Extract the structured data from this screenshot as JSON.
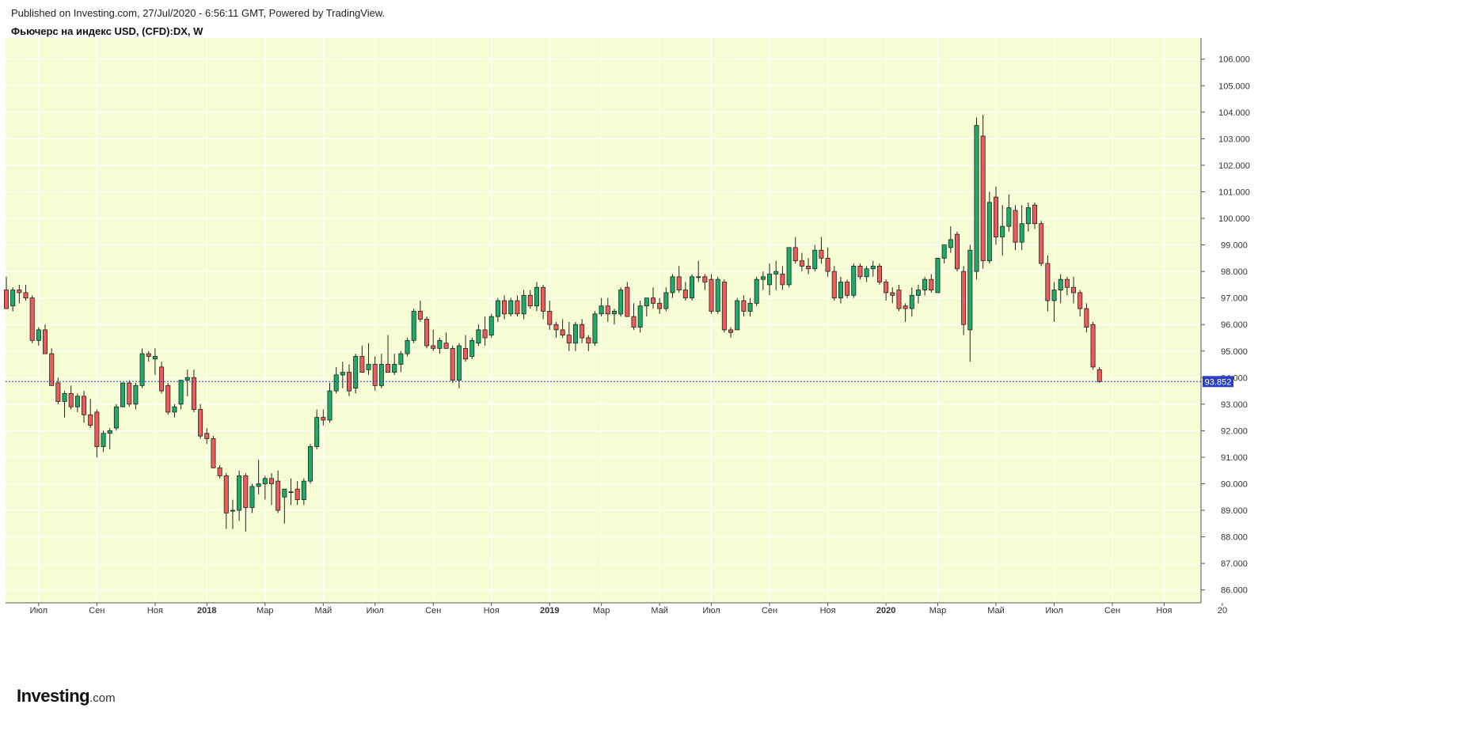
{
  "header": {
    "published": "Published on Investing.com, 27/Jul/2020 - 6:56:11 GMT, Powered by TradingView.",
    "title": "Фьючерс на индекс USD, (CFD):DX, W"
  },
  "logo": {
    "main": "Investing",
    "suffix": ".com"
  },
  "colors": {
    "plot_bg": "#f6fdd4",
    "grid": "#ffffff",
    "up": "#1dab6a",
    "down": "#ef5a5a",
    "wick": "#222222",
    "price_line": "#2b3fc9",
    "price_label_bg": "#2b3fc9"
  },
  "chart_data": {
    "type": "candlestick",
    "title": "Фьючерс на индекс USD, (CFD):DX, W",
    "ylim": [
      85.5,
      106.8
    ],
    "grid": true,
    "y_ticks": [
      "86.000",
      "87.000",
      "88.000",
      "89.000",
      "90.000",
      "91.000",
      "92.000",
      "93.000",
      "94.000",
      "95.000",
      "96.000",
      "97.000",
      "98.000",
      "99.000",
      "100.000",
      "101.000",
      "102.000",
      "103.000",
      "104.000",
      "105.000",
      "106.000"
    ],
    "x_ticks": [
      {
        "label": "Июл",
        "week": 5,
        "year": false
      },
      {
        "label": "Сен",
        "week": 14,
        "year": false
      },
      {
        "label": "Ноя",
        "week": 23,
        "year": false
      },
      {
        "label": "2018",
        "week": 31,
        "year": true
      },
      {
        "label": "Мар",
        "week": 40,
        "year": false
      },
      {
        "label": "Май",
        "week": 49,
        "year": false
      },
      {
        "label": "Июл",
        "week": 57,
        "year": false
      },
      {
        "label": "Сен",
        "week": 66,
        "year": false
      },
      {
        "label": "Ноя",
        "week": 75,
        "year": false
      },
      {
        "label": "2019",
        "week": 84,
        "year": true
      },
      {
        "label": "Мар",
        "week": 92,
        "year": false
      },
      {
        "label": "Май",
        "week": 101,
        "year": false
      },
      {
        "label": "Июл",
        "week": 109,
        "year": false
      },
      {
        "label": "Сен",
        "week": 118,
        "year": false
      },
      {
        "label": "Ноя",
        "week": 127,
        "year": false
      },
      {
        "label": "2020",
        "week": 136,
        "year": true
      },
      {
        "label": "Мар",
        "week": 144,
        "year": false
      },
      {
        "label": "Май",
        "week": 153,
        "year": false
      },
      {
        "label": "Июл",
        "week": 162,
        "year": false
      },
      {
        "label": "Сен",
        "week": 171,
        "year": false
      },
      {
        "label": "Ноя",
        "week": 179,
        "year": false
      },
      {
        "label": "20",
        "week": 188,
        "year": false
      }
    ],
    "last_price": 93.852,
    "last_price_label": "93.852",
    "candles": [
      [
        97.3,
        97.8,
        96.6,
        96.6
      ],
      [
        96.7,
        97.4,
        96.5,
        97.3
      ],
      [
        97.3,
        97.5,
        96.8,
        97.2
      ],
      [
        97.2,
        97.5,
        96.9,
        97.0
      ],
      [
        97.0,
        97.1,
        95.3,
        95.4
      ],
      [
        95.4,
        95.9,
        95.2,
        95.8
      ],
      [
        95.8,
        96.0,
        94.9,
        94.9
      ],
      [
        94.9,
        95.1,
        93.8,
        93.7
      ],
      [
        93.8,
        94.0,
        93.0,
        93.1
      ],
      [
        93.1,
        93.5,
        92.5,
        93.4
      ],
      [
        93.4,
        93.7,
        92.8,
        92.9
      ],
      [
        92.9,
        93.4,
        92.7,
        93.3
      ],
      [
        93.3,
        93.5,
        92.3,
        92.6
      ],
      [
        92.6,
        93.2,
        92.1,
        92.2
      ],
      [
        92.7,
        92.8,
        91.0,
        91.4
      ],
      [
        91.4,
        92.0,
        91.2,
        91.9
      ],
      [
        91.9,
        92.1,
        91.3,
        92.0
      ],
      [
        92.1,
        93.0,
        92.0,
        92.9
      ],
      [
        92.9,
        93.8,
        92.9,
        93.8
      ],
      [
        93.8,
        93.9,
        92.9,
        93.0
      ],
      [
        93.0,
        93.8,
        92.8,
        93.7
      ],
      [
        93.7,
        95.1,
        93.6,
        94.9
      ],
      [
        94.9,
        95.0,
        94.6,
        94.8
      ],
      [
        94.7,
        95.1,
        94.1,
        94.8
      ],
      [
        94.4,
        94.6,
        93.4,
        93.5
      ],
      [
        93.7,
        93.8,
        92.6,
        92.7
      ],
      [
        92.7,
        93.0,
        92.5,
        92.9
      ],
      [
        93.0,
        93.9,
        92.8,
        93.9
      ],
      [
        93.9,
        94.3,
        93.3,
        94.0
      ],
      [
        94.0,
        94.3,
        92.7,
        92.8
      ],
      [
        92.8,
        93.0,
        91.7,
        91.8
      ],
      [
        91.9,
        92.1,
        91.5,
        91.7
      ],
      [
        91.7,
        91.8,
        90.6,
        90.6
      ],
      [
        90.6,
        90.7,
        90.2,
        90.3
      ],
      [
        90.3,
        90.4,
        88.3,
        88.9
      ],
      [
        89.0,
        89.4,
        88.3,
        89.0
      ],
      [
        89.0,
        90.5,
        88.6,
        90.3
      ],
      [
        90.3,
        90.4,
        88.2,
        89.1
      ],
      [
        89.1,
        90.0,
        88.9,
        89.9
      ],
      [
        89.9,
        90.9,
        89.6,
        90.0
      ],
      [
        90.0,
        90.3,
        89.4,
        90.2
      ],
      [
        90.2,
        90.4,
        89.2,
        90.0
      ],
      [
        90.1,
        90.5,
        88.9,
        89.0
      ],
      [
        89.5,
        89.8,
        88.5,
        89.8
      ],
      [
        89.7,
        90.2,
        89.2,
        89.7
      ],
      [
        89.8,
        90.1,
        89.2,
        89.4
      ],
      [
        89.4,
        90.2,
        89.2,
        90.1
      ],
      [
        90.1,
        91.5,
        90.0,
        91.4
      ],
      [
        91.4,
        92.8,
        91.3,
        92.5
      ],
      [
        92.5,
        92.8,
        92.2,
        92.4
      ],
      [
        92.4,
        93.8,
        92.3,
        93.5
      ],
      [
        93.5,
        94.4,
        93.4,
        94.1
      ],
      [
        94.1,
        94.6,
        93.6,
        94.2
      ],
      [
        94.2,
        94.5,
        93.3,
        93.5
      ],
      [
        93.6,
        94.9,
        93.4,
        94.8
      ],
      [
        94.8,
        95.2,
        94.2,
        94.2
      ],
      [
        94.3,
        95.3,
        94.1,
        94.5
      ],
      [
        94.5,
        94.8,
        93.5,
        93.7
      ],
      [
        93.7,
        94.9,
        93.6,
        94.5
      ],
      [
        94.5,
        95.6,
        94.3,
        94.2
      ],
      [
        94.2,
        94.9,
        94.1,
        94.5
      ],
      [
        94.5,
        95.0,
        94.2,
        94.9
      ],
      [
        94.9,
        95.5,
        94.8,
        95.4
      ],
      [
        95.4,
        96.6,
        95.3,
        96.5
      ],
      [
        96.5,
        96.9,
        96.1,
        96.2
      ],
      [
        96.2,
        96.3,
        95.1,
        95.2
      ],
      [
        95.2,
        95.8,
        95.0,
        95.1
      ],
      [
        95.1,
        95.5,
        94.9,
        95.4
      ],
      [
        95.3,
        95.7,
        95.1,
        95.1
      ],
      [
        95.1,
        95.2,
        93.8,
        93.9
      ],
      [
        93.9,
        95.3,
        93.6,
        95.2
      ],
      [
        95.1,
        95.6,
        94.6,
        94.7
      ],
      [
        94.8,
        95.5,
        94.7,
        95.4
      ],
      [
        95.3,
        96.0,
        95.2,
        95.8
      ],
      [
        95.8,
        96.3,
        95.2,
        95.5
      ],
      [
        95.6,
        96.4,
        95.5,
        96.3
      ],
      [
        96.3,
        97.0,
        96.1,
        96.9
      ],
      [
        96.9,
        97.1,
        96.2,
        96.4
      ],
      [
        96.4,
        97.0,
        96.3,
        96.9
      ],
      [
        96.9,
        97.1,
        96.3,
        96.4
      ],
      [
        96.4,
        97.3,
        96.2,
        97.1
      ],
      [
        97.1,
        97.3,
        96.6,
        96.7
      ],
      [
        96.7,
        97.6,
        96.5,
        97.4
      ],
      [
        97.4,
        97.5,
        96.2,
        96.5
      ],
      [
        96.5,
        96.9,
        95.8,
        96.0
      ],
      [
        96.0,
        96.1,
        95.5,
        95.8
      ],
      [
        95.8,
        96.2,
        95.5,
        95.6
      ],
      [
        95.6,
        96.1,
        95.0,
        95.3
      ],
      [
        95.3,
        96.1,
        95.0,
        96.0
      ],
      [
        96.0,
        96.2,
        95.3,
        95.5
      ],
      [
        95.5,
        95.6,
        95.0,
        95.3
      ],
      [
        95.3,
        96.5,
        95.2,
        96.4
      ],
      [
        96.4,
        97.0,
        96.3,
        96.7
      ],
      [
        96.7,
        97.0,
        96.1,
        96.4
      ],
      [
        96.4,
        96.6,
        96.0,
        96.5
      ],
      [
        96.4,
        97.4,
        96.3,
        97.3
      ],
      [
        97.4,
        97.6,
        96.3,
        96.3
      ],
      [
        96.3,
        96.8,
        95.8,
        95.9
      ],
      [
        95.9,
        96.9,
        95.7,
        96.7
      ],
      [
        96.7,
        97.0,
        96.3,
        97.0
      ],
      [
        97.0,
        97.4,
        96.6,
        96.8
      ],
      [
        96.8,
        97.0,
        96.4,
        96.6
      ],
      [
        96.6,
        97.4,
        96.5,
        97.2
      ],
      [
        97.2,
        97.9,
        97.0,
        97.8
      ],
      [
        97.8,
        98.2,
        97.2,
        97.3
      ],
      [
        97.3,
        97.6,
        96.9,
        97.0
      ],
      [
        97.0,
        97.9,
        96.9,
        97.8
      ],
      [
        97.8,
        98.4,
        97.6,
        97.8
      ],
      [
        97.8,
        97.9,
        97.3,
        97.6
      ],
      [
        97.7,
        97.9,
        96.4,
        96.5
      ],
      [
        96.5,
        97.8,
        96.4,
        97.7
      ],
      [
        97.6,
        97.7,
        95.7,
        95.8
      ],
      [
        95.8,
        95.9,
        95.5,
        95.7
      ],
      [
        95.8,
        97.0,
        95.8,
        96.9
      ],
      [
        96.9,
        97.1,
        96.3,
        96.5
      ],
      [
        96.5,
        97.0,
        96.3,
        96.8
      ],
      [
        96.8,
        97.8,
        96.7,
        97.7
      ],
      [
        97.7,
        98.0,
        97.3,
        97.8
      ],
      [
        97.5,
        98.3,
        97.1,
        97.9
      ],
      [
        97.9,
        98.4,
        97.3,
        98.0
      ],
      [
        97.9,
        98.2,
        97.3,
        97.5
      ],
      [
        97.5,
        98.9,
        97.4,
        98.9
      ],
      [
        98.9,
        99.3,
        98.3,
        98.4
      ],
      [
        98.4,
        98.7,
        98.0,
        98.2
      ],
      [
        98.2,
        98.5,
        97.9,
        98.1
      ],
      [
        98.1,
        99.0,
        98.0,
        98.8
      ],
      [
        98.8,
        99.3,
        98.3,
        98.5
      ],
      [
        98.5,
        98.9,
        97.8,
        98.0
      ],
      [
        98.0,
        98.2,
        96.9,
        97.0
      ],
      [
        97.0,
        97.8,
        96.8,
        97.6
      ],
      [
        97.6,
        97.7,
        97.0,
        97.1
      ],
      [
        97.1,
        98.3,
        97.0,
        98.2
      ],
      [
        98.2,
        98.3,
        97.7,
        97.8
      ],
      [
        97.8,
        98.2,
        97.6,
        98.1
      ],
      [
        98.1,
        98.4,
        97.8,
        98.2
      ],
      [
        98.2,
        98.3,
        97.5,
        97.6
      ],
      [
        97.6,
        97.7,
        96.9,
        97.2
      ],
      [
        97.2,
        97.4,
        96.8,
        97.1
      ],
      [
        97.3,
        97.5,
        96.5,
        96.6
      ],
      [
        96.7,
        96.8,
        96.1,
        96.6
      ],
      [
        96.6,
        97.4,
        96.3,
        97.1
      ],
      [
        97.1,
        97.5,
        96.8,
        97.3
      ],
      [
        97.3,
        97.8,
        97.1,
        97.7
      ],
      [
        97.7,
        97.9,
        97.2,
        97.3
      ],
      [
        97.2,
        98.5,
        97.2,
        98.5
      ],
      [
        98.5,
        99.0,
        98.3,
        99.0
      ],
      [
        98.9,
        99.7,
        98.7,
        99.2
      ],
      [
        99.4,
        99.5,
        98.0,
        98.1
      ],
      [
        98.0,
        98.2,
        95.6,
        96.0
      ],
      [
        95.8,
        99.0,
        94.6,
        98.8
      ],
      [
        98.0,
        103.8,
        97.7,
        103.5
      ],
      [
        103.1,
        103.9,
        98.1,
        98.4
      ],
      [
        98.4,
        101.0,
        98.3,
        100.6
      ],
      [
        100.8,
        101.2,
        99.0,
        99.3
      ],
      [
        99.3,
        100.5,
        98.6,
        99.7
      ],
      [
        99.7,
        100.9,
        99.5,
        100.4
      ],
      [
        100.3,
        100.5,
        98.8,
        99.1
      ],
      [
        99.1,
        100.5,
        98.8,
        99.8
      ],
      [
        99.8,
        100.6,
        99.5,
        100.4
      ],
      [
        100.5,
        100.6,
        99.6,
        99.8
      ],
      [
        99.8,
        99.9,
        98.2,
        98.3
      ],
      [
        98.3,
        98.6,
        96.5,
        96.9
      ],
      [
        96.9,
        97.6,
        96.1,
        97.3
      ],
      [
        97.3,
        97.9,
        96.8,
        97.7
      ],
      [
        97.7,
        97.8,
        97.1,
        97.4
      ],
      [
        97.4,
        97.8,
        96.8,
        97.2
      ],
      [
        97.2,
        97.3,
        96.3,
        96.6
      ],
      [
        96.6,
        96.8,
        95.7,
        95.9
      ],
      [
        96.0,
        96.1,
        94.3,
        94.4
      ],
      [
        94.3,
        94.4,
        93.8,
        93.852
      ]
    ]
  }
}
